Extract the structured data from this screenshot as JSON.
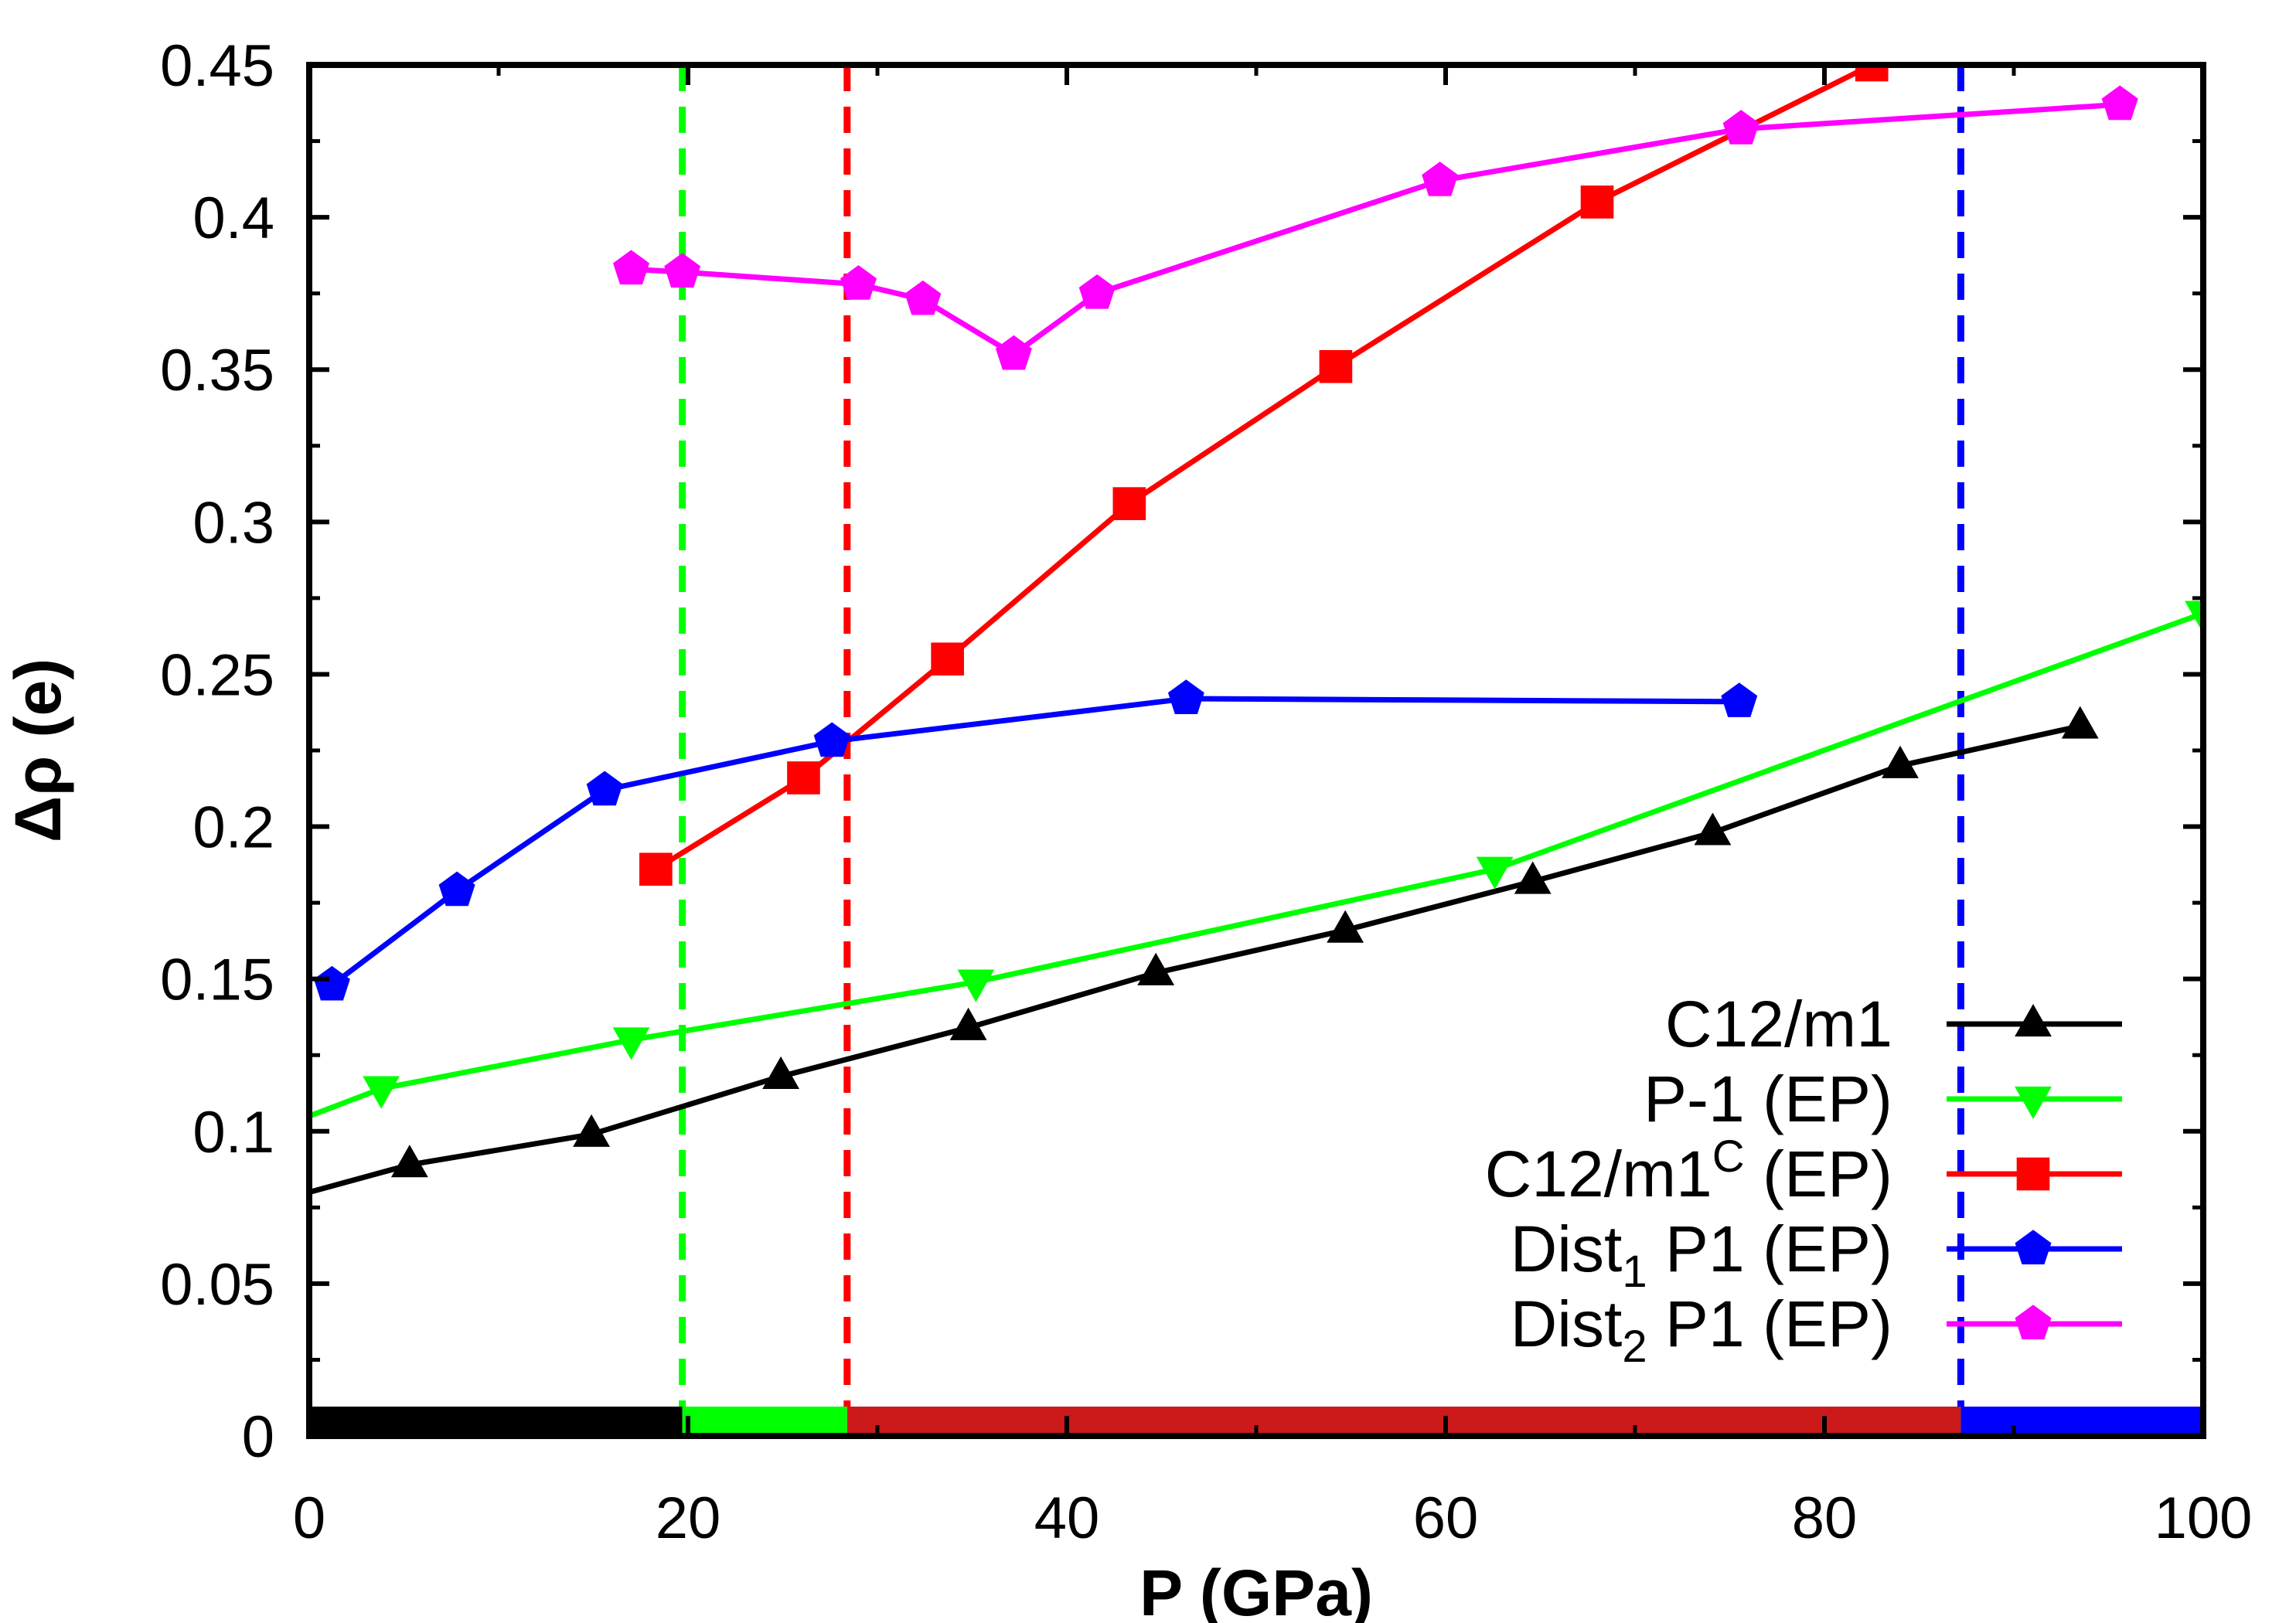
{
  "chart_data": {
    "type": "line",
    "title": "",
    "xlabel": "P (GPa)",
    "ylabel": "Δρ (e)",
    "xlim": [
      0,
      100
    ],
    "ylim": [
      0,
      0.45
    ],
    "xticks": [
      "0",
      "20",
      "40",
      "60",
      "80",
      "100"
    ],
    "yticks": [
      "0",
      "0.05",
      "0.1",
      "0.15",
      "0.2",
      "0.25",
      "0.3",
      "0.35",
      "0.4",
      "0.45"
    ],
    "grid": false,
    "legend_position": "bottom-right",
    "series": [
      {
        "name": "C12/m1",
        "label_main": "C12/m1",
        "label_sub": "",
        "label_sup": "",
        "label_rest": "",
        "color": "#000000",
        "marker": "triangle-up",
        "points": [
          [
            0,
            0.08
          ],
          [
            5.3,
            0.089
          ],
          [
            14.9,
            0.099
          ],
          [
            24.9,
            0.118
          ],
          [
            34.8,
            0.134
          ],
          [
            44.7,
            0.152
          ],
          [
            54.7,
            0.166
          ],
          [
            64.6,
            0.182
          ],
          [
            74.1,
            0.198
          ],
          [
            84,
            0.22
          ],
          [
            93.5,
            0.233
          ]
        ]
      },
      {
        "name": "P-1 (EP)",
        "label_main": "P-1 (EP)",
        "label_sub": "",
        "label_sup": "",
        "label_rest": "",
        "color": "#00ff00",
        "marker": "triangle-down",
        "points": [
          [
            0,
            0.105
          ],
          [
            3.8,
            0.114
          ],
          [
            17,
            0.13
          ],
          [
            35.2,
            0.149
          ],
          [
            62.6,
            0.186
          ],
          [
            100,
            0.27
          ]
        ]
      },
      {
        "name": "C12/m1C (EP)",
        "label_main": "C12/m1",
        "label_sub": "",
        "label_sup": "C",
        "label_rest": " (EP)",
        "color": "#ff0000",
        "marker": "square",
        "points": [
          [
            18.3,
            0.186
          ],
          [
            26.1,
            0.216
          ],
          [
            33.7,
            0.255
          ],
          [
            43.3,
            0.306
          ],
          [
            54.2,
            0.351
          ],
          [
            68,
            0.405
          ],
          [
            82.5,
            0.45
          ]
        ]
      },
      {
        "name": "Dist1 P1 (EP)",
        "label_main": "Dist",
        "label_sub": "1",
        "label_sup": "",
        "label_rest": " P1 (EP)",
        "color": "#0000ff",
        "marker": "pentagon",
        "points": [
          [
            1.2,
            0.148
          ],
          [
            7.8,
            0.179
          ],
          [
            15.6,
            0.212
          ],
          [
            27.6,
            0.228
          ],
          [
            46.3,
            0.242
          ],
          [
            75.5,
            0.241
          ]
        ]
      },
      {
        "name": "Dist2 P1 (EP)",
        "label_main": "Dist",
        "label_sub": "2",
        "label_sup": "",
        "label_rest": " P1 (EP)",
        "color": "#ff00ff",
        "marker": "pentagon",
        "points": [
          [
            17,
            0.383
          ],
          [
            19.7,
            0.382
          ],
          [
            29,
            0.378
          ],
          [
            32.4,
            0.373
          ],
          [
            37.2,
            0.355
          ],
          [
            41.6,
            0.375
          ],
          [
            59.7,
            0.412
          ],
          [
            75.6,
            0.429
          ],
          [
            95.6,
            0.437
          ]
        ]
      }
    ],
    "vertical_lines": [
      {
        "x": 19.7,
        "color": "#00ff00",
        "style": "dashed"
      },
      {
        "x": 28.4,
        "color": "#ff0000",
        "style": "dashed"
      },
      {
        "x": 87.2,
        "color": "#0000ff",
        "style": "dashed"
      }
    ],
    "phase_bar": [
      {
        "from": 0,
        "to": 19.7,
        "color": "#000000"
      },
      {
        "from": 19.7,
        "to": 28.4,
        "color": "#00ff00"
      },
      {
        "from": 28.4,
        "to": 87.2,
        "color": "#cc1a1a"
      },
      {
        "from": 87.2,
        "to": 100,
        "color": "#0000ff"
      }
    ]
  }
}
